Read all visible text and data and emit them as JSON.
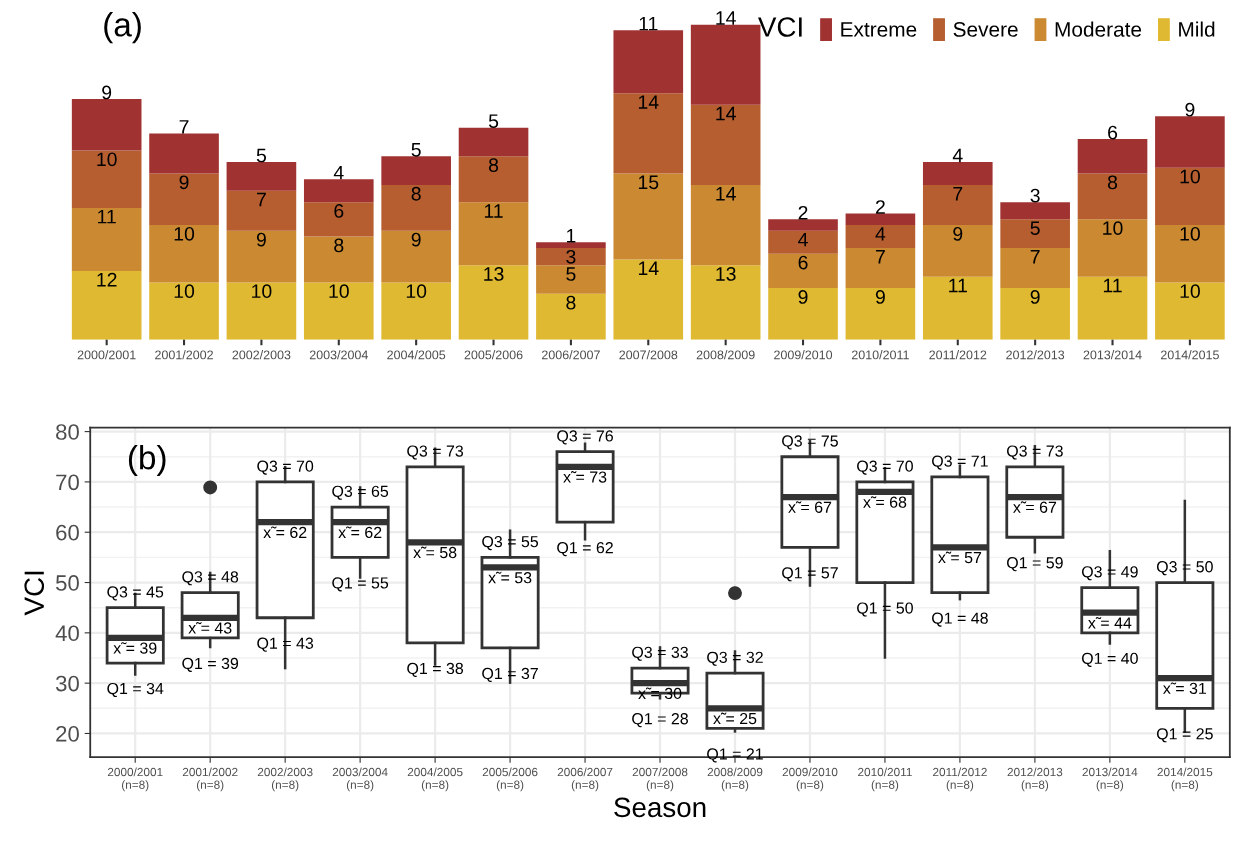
{
  "chart_data": [
    {
      "type": "bar",
      "title": "(a)",
      "stacked": true,
      "data_labels": true,
      "tick_labels": "x",
      "legend": "top right",
      "legend_title": "VCI",
      "categories": [
        "2000/2001",
        "2001/2002",
        "2002/2003",
        "2003/2004",
        "2004/2005",
        "2005/2006",
        "2006/2007",
        "2007/2008",
        "2008/2009",
        "2009/2010",
        "2010/2011",
        "2011/2012",
        "2012/2013",
        "2013/2014",
        "2014/2015"
      ],
      "series": [
        {
          "name": "Mild",
          "color": "#e0b932",
          "values": [
            12,
            10,
            10,
            10,
            10,
            13,
            8,
            14,
            13,
            9,
            9,
            11,
            9,
            11,
            10
          ]
        },
        {
          "name": "Moderate",
          "color": "#cb8a32",
          "values": [
            11,
            10,
            9,
            8,
            9,
            11,
            5,
            15,
            14,
            6,
            7,
            9,
            7,
            10,
            10
          ]
        },
        {
          "name": "Severe",
          "color": "#b65e30",
          "values": [
            10,
            9,
            7,
            6,
            8,
            8,
            3,
            14,
            14,
            4,
            4,
            7,
            5,
            8,
            10
          ]
        },
        {
          "name": "Extreme",
          "color": "#a03232",
          "values": [
            9,
            7,
            5,
            4,
            5,
            5,
            1,
            11,
            14,
            2,
            2,
            4,
            3,
            6,
            9
          ]
        }
      ]
    },
    {
      "type": "box",
      "title": "(b)",
      "xlabel": "Season",
      "ylabel": "VCI",
      "grid": true,
      "categories": [
        "2000/2001\n(n=8)",
        "2001/2002\n(n=8)",
        "2002/2003\n(n=8)",
        "2003/2004\n(n=8)",
        "2004/2005\n(n=8)",
        "2005/2006\n(n=8)",
        "2006/2007\n(n=8)",
        "2007/2008\n(n=8)",
        "2008/2009\n(n=8)",
        "2009/2010\n(n=8)",
        "2010/2011\n(n=8)",
        "2011/2012\n(n=8)",
        "2012/2013\n(n=8)",
        "2013/2014\n(n=8)",
        "2014/2015\n(n=8)"
      ],
      "ylim": [
        15.3,
        80.8
      ],
      "yticks": [
        20,
        30,
        40,
        50,
        60,
        70,
        80
      ],
      "boxes": [
        {
          "low": 31.7,
          "q1": 34,
          "median": 39,
          "q3": 45,
          "high": 47.7
        },
        {
          "low": 37.2,
          "q1": 39,
          "median": 43,
          "q3": 48,
          "high": 51.9,
          "outliers": [
            68.9
          ]
        },
        {
          "low": 33.0,
          "q1": 43,
          "median": 62,
          "q3": 70,
          "high": 72.9
        },
        {
          "low": 51.0,
          "q1": 55,
          "median": 62,
          "q3": 65,
          "high": 68.9
        },
        {
          "low": 33.7,
          "q1": 38,
          "median": 58,
          "q3": 73,
          "high": 76.6
        },
        {
          "low": 30.1,
          "q1": 37,
          "median": 53,
          "q3": 55,
          "high": 60.3
        },
        {
          "low": 58.6,
          "q1": 62,
          "median": 73,
          "q3": 76,
          "high": 77.6
        },
        {
          "low": 27,
          "q1": 28,
          "median": 30,
          "q3": 33,
          "high": 37.1
        },
        {
          "low": 20.4,
          "q1": 21,
          "median": 25,
          "q3": 32,
          "high": 36.3,
          "outliers": [
            47.9
          ]
        },
        {
          "low": 49.4,
          "q1": 57,
          "median": 67,
          "q3": 75,
          "high": 78.1
        },
        {
          "low": 35.1,
          "q1": 50,
          "median": 68,
          "q3": 70,
          "high": 72.7
        },
        {
          "low": 46.7,
          "q1": 48,
          "median": 57,
          "q3": 71,
          "high": 73.2
        },
        {
          "low": 56.0,
          "q1": 59,
          "median": 67,
          "q3": 73,
          "high": 77.1
        },
        {
          "low": 37.9,
          "q1": 40,
          "median": 44,
          "q3": 49,
          "high": 56.2
        },
        {
          "low": 20.4,
          "q1": 25,
          "median": 31,
          "q3": 50,
          "high": 66.2
        }
      ],
      "annotations": [
        {
          "text": "Q3 = 45",
          "x": "2000/2001\n(n=8)",
          "y": 45
        },
        {
          "text": "x̃ = 39",
          "x": "2000/2001\n(n=8)",
          "y": 39
        },
        {
          "text": "Q1 = 34",
          "x": "2000/2001\n(n=8)",
          "y": 34
        },
        {
          "text": "Q3 = 48",
          "x": "2001/2002\n(n=8)",
          "y": 48
        },
        {
          "text": "x̃ = 43",
          "x": "2001/2002\n(n=8)",
          "y": 43
        },
        {
          "text": "Q1 = 39",
          "x": "2001/2002\n(n=8)",
          "y": 39
        },
        {
          "text": "Q3 = 70",
          "x": "2002/2003\n(n=8)",
          "y": 70
        },
        {
          "text": "x̃ = 62",
          "x": "2002/2003\n(n=8)",
          "y": 62
        },
        {
          "text": "Q1 = 43",
          "x": "2002/2003\n(n=8)",
          "y": 43
        },
        {
          "text": "Q3 = 65",
          "x": "2003/2004\n(n=8)",
          "y": 65
        },
        {
          "text": "x̃ = 62",
          "x": "2003/2004\n(n=8)",
          "y": 62
        },
        {
          "text": "Q1 = 55",
          "x": "2003/2004\n(n=8)",
          "y": 55
        },
        {
          "text": "Q3 = 73",
          "x": "2004/2005\n(n=8)",
          "y": 73
        },
        {
          "text": "x̃ = 58",
          "x": "2004/2005\n(n=8)",
          "y": 58
        },
        {
          "text": "Q1 = 38",
          "x": "2004/2005\n(n=8)",
          "y": 38
        },
        {
          "text": "Q3 = 55",
          "x": "2005/2006\n(n=8)",
          "y": 55
        },
        {
          "text": "x̃ = 53",
          "x": "2005/2006\n(n=8)",
          "y": 53
        },
        {
          "text": "Q1 = 37",
          "x": "2005/2006\n(n=8)",
          "y": 37
        },
        {
          "text": "Q3 = 76",
          "x": "2006/2007\n(n=8)",
          "y": 76
        },
        {
          "text": "x̃ = 73",
          "x": "2006/2007\n(n=8)",
          "y": 73
        },
        {
          "text": "Q1 = 62",
          "x": "2006/2007\n(n=8)",
          "y": 62
        },
        {
          "text": "Q3 = 33",
          "x": "2007/2008\n(n=8)",
          "y": 33
        },
        {
          "text": "x̃ = 30",
          "x": "2007/2008\n(n=8)",
          "y": 30
        },
        {
          "text": "Q1 = 28",
          "x": "2007/2008\n(n=8)",
          "y": 28
        },
        {
          "text": "Q3 = 32",
          "x": "2008/2009\n(n=8)",
          "y": 32
        },
        {
          "text": "x̃ = 25",
          "x": "2008/2009\n(n=8)",
          "y": 25
        },
        {
          "text": "Q1 = 21",
          "x": "2008/2009\n(n=8)",
          "y": 21
        },
        {
          "text": "Q3 = 75",
          "x": "2009/2010\n(n=8)",
          "y": 75
        },
        {
          "text": "x̃ = 67",
          "x": "2009/2010\n(n=8)",
          "y": 67
        },
        {
          "text": "Q1 = 57",
          "x": "2009/2010\n(n=8)",
          "y": 57
        },
        {
          "text": "Q3 = 70",
          "x": "2010/2011\n(n=8)",
          "y": 70
        },
        {
          "text": "x̃ = 68",
          "x": "2010/2011\n(n=8)",
          "y": 68
        },
        {
          "text": "Q1 = 50",
          "x": "2010/2011\n(n=8)",
          "y": 50
        },
        {
          "text": "Q3 = 71",
          "x": "2011/2012\n(n=8)",
          "y": 71
        },
        {
          "text": "x̃ = 57",
          "x": "2011/2012\n(n=8)",
          "y": 57
        },
        {
          "text": "Q1 = 48",
          "x": "2011/2012\n(n=8)",
          "y": 48
        },
        {
          "text": "Q3 = 73",
          "x": "2012/2013\n(n=8)",
          "y": 73
        },
        {
          "text": "x̃ = 67",
          "x": "2012/2013\n(n=8)",
          "y": 67
        },
        {
          "text": "Q1 = 59",
          "x": "2012/2013\n(n=8)",
          "y": 59
        },
        {
          "text": "Q3 = 49",
          "x": "2013/2014\n(n=8)",
          "y": 49
        },
        {
          "text": "x̃ = 44",
          "x": "2013/2014\n(n=8)",
          "y": 44
        },
        {
          "text": "Q1 = 40",
          "x": "2013/2014\n(n=8)",
          "y": 40
        },
        {
          "text": "Q3 = 50",
          "x": "2014/2015\n(n=8)",
          "y": 50
        },
        {
          "text": "x̃ = 31",
          "x": "2014/2015\n(n=8)",
          "y": 31
        },
        {
          "text": "Q1 = 25",
          "x": "2014/2015\n(n=8)",
          "y": 25
        }
      ]
    }
  ]
}
